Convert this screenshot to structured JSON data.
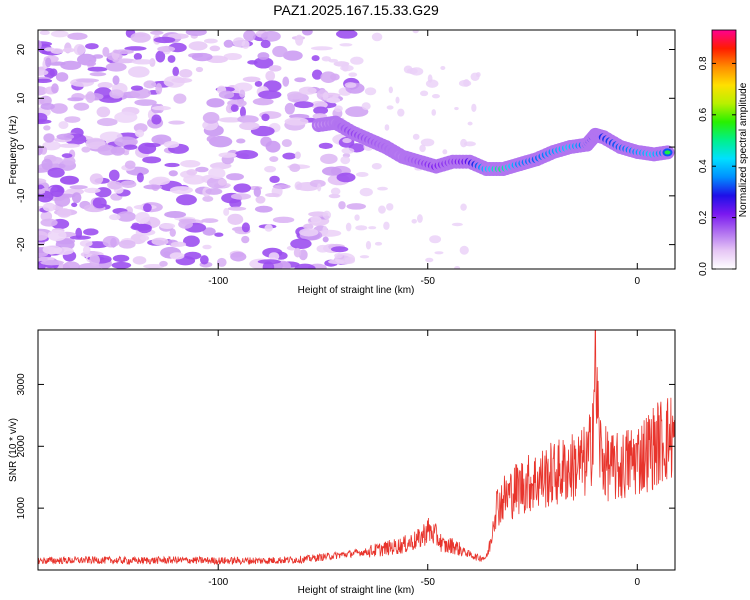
{
  "title": "PAZ1.2025.167.15.33.G29",
  "chart_data": [
    {
      "type": "heatmap",
      "xlabel": "Height of straight line (km)",
      "ylabel": "Frequency (Hz)",
      "xlim": [
        -143,
        9
      ],
      "ylim": [
        -25,
        24
      ],
      "x_ticks": [
        -100,
        -50,
        0
      ],
      "y_ticks": [
        -20,
        -10,
        0,
        10,
        20
      ],
      "colorbar": {
        "label": "Normalized spectral amplitude",
        "range": [
          0,
          0.93
        ],
        "ticks": [
          0.0,
          0.2,
          0.4,
          0.6,
          0.8
        ],
        "colors": [
          "#ffffff",
          "#e6c6f5",
          "#b070f0",
          "#7a18f0",
          "#1e10e8",
          "#0090ff",
          "#00e0ff",
          "#00f08c",
          "#28f000",
          "#b8f000",
          "#ffe000",
          "#ff8c00",
          "#ff1c00",
          "#ff0090"
        ]
      },
      "ridge": {
        "x": [
          -76,
          -72,
          -68,
          -64,
          -60,
          -56,
          -52,
          -48,
          -44,
          -40,
          -36,
          -32,
          -28,
          -24,
          -20,
          -16,
          -12,
          -10,
          -8,
          -4,
          0,
          4,
          8
        ],
        "y": [
          4.5,
          5,
          3,
          1.5,
          0,
          -2,
          -3,
          -4,
          -3,
          -3,
          -4.5,
          -4.5,
          -3.5,
          -2.5,
          -1,
          0,
          0.5,
          2.5,
          2,
          0,
          -1,
          -1.5,
          -1
        ],
        "amplitude": [
          0.18,
          0.22,
          0.3,
          0.28,
          0.25,
          0.22,
          0.28,
          0.35,
          0.3,
          0.4,
          0.65,
          0.85,
          0.6,
          0.55,
          0.6,
          0.7,
          0.55,
          0.45,
          0.5,
          0.55,
          0.6,
          0.7,
          0.5
        ]
      },
      "noise_region_x": [
        -143,
        -76
      ]
    },
    {
      "type": "line",
      "xlabel": "Height of straight line (km)",
      "ylabel": "SNR (10 * v/v)",
      "xlim": [
        -143,
        9
      ],
      "ylim": [
        0,
        3880
      ],
      "x_ticks": [
        -100,
        -50,
        0
      ],
      "y_ticks": [
        1000,
        2000,
        3000
      ],
      "line_color": "#e8342c",
      "series": [
        {
          "x": [
            -143,
            -130,
            -120,
            -110,
            -100,
            -90,
            -80,
            -70,
            -64,
            -60,
            -56,
            -52,
            -50,
            -48,
            -46,
            -44,
            -42,
            -40,
            -38,
            -36,
            -35,
            -34,
            -32,
            -30,
            -28,
            -26,
            -24,
            -22,
            -20,
            -18,
            -16,
            -14,
            -12,
            -11,
            -10,
            -9,
            -8,
            -6,
            -4,
            -2,
            0,
            2,
            4,
            6,
            8
          ],
          "y": [
            150,
            160,
            150,
            160,
            150,
            150,
            170,
            250,
            300,
            350,
            400,
            500,
            650,
            550,
            380,
            400,
            320,
            250,
            200,
            200,
            450,
            1000,
            1150,
            1250,
            1350,
            1400,
            1450,
            1500,
            1550,
            1600,
            1650,
            1700,
            1750,
            2000,
            3300,
            2000,
            1750,
            1650,
            1650,
            1750,
            1800,
            1900,
            2000,
            2100,
            2150
          ]
        }
      ]
    }
  ]
}
